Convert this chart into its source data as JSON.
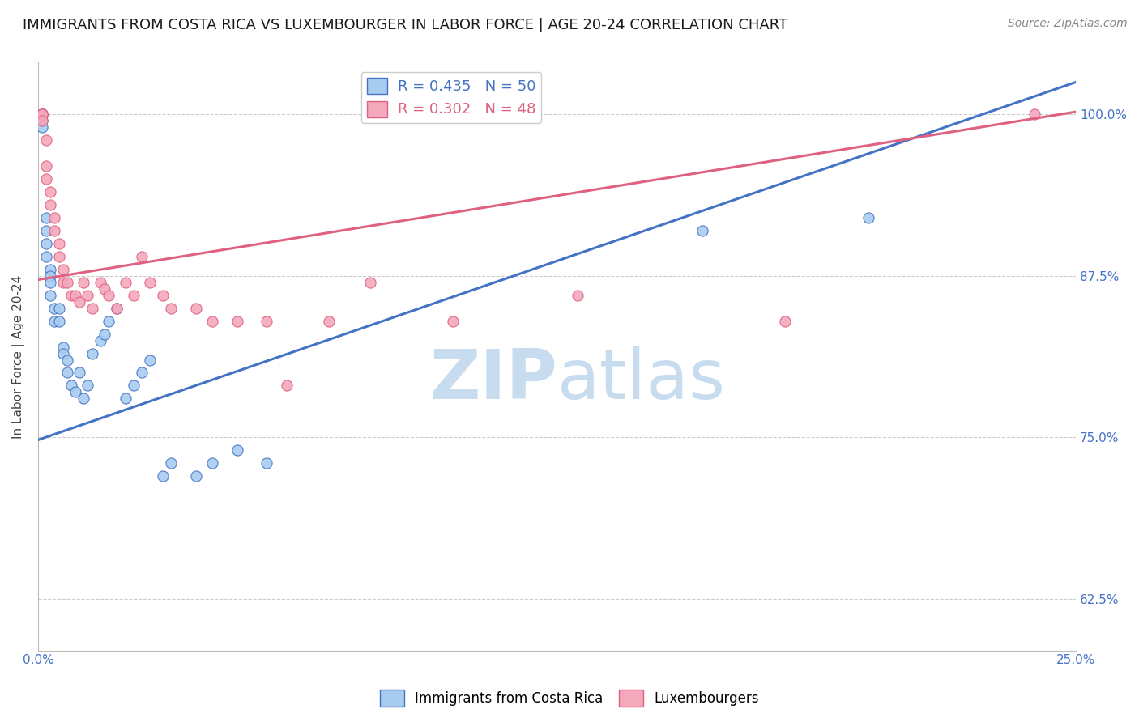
{
  "title": "IMMIGRANTS FROM COSTA RICA VS LUXEMBOURGER IN LABOR FORCE | AGE 20-24 CORRELATION CHART",
  "source": "Source: ZipAtlas.com",
  "ylabel": "In Labor Force | Age 20-24",
  "xlim": [
    0.0,
    0.25
  ],
  "ylim": [
    0.585,
    1.04
  ],
  "yticks": [
    0.625,
    0.75,
    0.875,
    1.0
  ],
  "ytick_labels": [
    "62.5%",
    "75.0%",
    "87.5%",
    "100.0%"
  ],
  "xticks": [
    0.0,
    0.05,
    0.1,
    0.15,
    0.2,
    0.25
  ],
  "xtick_labels": [
    "0.0%",
    "",
    "",
    "",
    "",
    "25.0%"
  ],
  "blue_R": 0.435,
  "blue_N": 50,
  "pink_R": 0.302,
  "pink_N": 48,
  "blue_color": "#A8CCF0",
  "pink_color": "#F4A8BC",
  "blue_line_color": "#4472C4",
  "pink_line_color": "#E06080",
  "legend_label_blue": "Immigrants from Costa Rica",
  "legend_label_pink": "Luxembourgers",
  "blue_scatter_x": [
    0.001,
    0.001,
    0.001,
    0.001,
    0.001,
    0.001,
    0.001,
    0.001,
    0.001,
    0.001,
    0.001,
    0.001,
    0.002,
    0.002,
    0.002,
    0.002,
    0.003,
    0.003,
    0.003,
    0.003,
    0.004,
    0.004,
    0.005,
    0.005,
    0.006,
    0.006,
    0.007,
    0.007,
    0.008,
    0.009,
    0.01,
    0.011,
    0.012,
    0.013,
    0.015,
    0.016,
    0.017,
    0.019,
    0.021,
    0.023,
    0.025,
    0.027,
    0.03,
    0.032,
    0.038,
    0.042,
    0.048,
    0.055,
    0.16,
    0.2
  ],
  "blue_scatter_y": [
    1.0,
    1.0,
    1.0,
    1.0,
    1.0,
    1.0,
    1.0,
    1.0,
    1.0,
    1.0,
    0.995,
    0.99,
    0.92,
    0.91,
    0.9,
    0.89,
    0.88,
    0.875,
    0.87,
    0.86,
    0.85,
    0.84,
    0.85,
    0.84,
    0.82,
    0.815,
    0.81,
    0.8,
    0.79,
    0.785,
    0.8,
    0.78,
    0.79,
    0.815,
    0.825,
    0.83,
    0.84,
    0.85,
    0.78,
    0.79,
    0.8,
    0.81,
    0.72,
    0.73,
    0.72,
    0.73,
    0.74,
    0.73,
    0.91,
    0.92
  ],
  "pink_scatter_x": [
    0.001,
    0.001,
    0.001,
    0.001,
    0.001,
    0.001,
    0.001,
    0.001,
    0.001,
    0.002,
    0.002,
    0.002,
    0.003,
    0.003,
    0.004,
    0.004,
    0.005,
    0.005,
    0.006,
    0.006,
    0.007,
    0.008,
    0.009,
    0.01,
    0.011,
    0.012,
    0.013,
    0.015,
    0.016,
    0.017,
    0.019,
    0.021,
    0.023,
    0.025,
    0.027,
    0.03,
    0.032,
    0.038,
    0.042,
    0.048,
    0.055,
    0.06,
    0.07,
    0.08,
    0.1,
    0.13,
    0.18,
    0.24
  ],
  "pink_scatter_y": [
    1.0,
    1.0,
    1.0,
    1.0,
    1.0,
    1.0,
    1.0,
    1.0,
    0.995,
    0.98,
    0.96,
    0.95,
    0.94,
    0.93,
    0.92,
    0.91,
    0.9,
    0.89,
    0.88,
    0.87,
    0.87,
    0.86,
    0.86,
    0.855,
    0.87,
    0.86,
    0.85,
    0.87,
    0.865,
    0.86,
    0.85,
    0.87,
    0.86,
    0.89,
    0.87,
    0.86,
    0.85,
    0.85,
    0.84,
    0.84,
    0.84,
    0.79,
    0.84,
    0.87,
    0.84,
    0.86,
    0.84,
    1.0
  ],
  "background_color": "#FFFFFF",
  "grid_color": "#CCCCCC",
  "watermark_zip": "ZIP",
  "watermark_atlas": "atlas",
  "watermark_color_zip": "#C8DCF0",
  "watermark_color_atlas": "#C8DCF0",
  "title_fontsize": 13,
  "axis_label_fontsize": 11,
  "tick_fontsize": 11,
  "legend_fontsize": 12,
  "source_fontsize": 10,
  "right_ytick_color": "#4472C4"
}
